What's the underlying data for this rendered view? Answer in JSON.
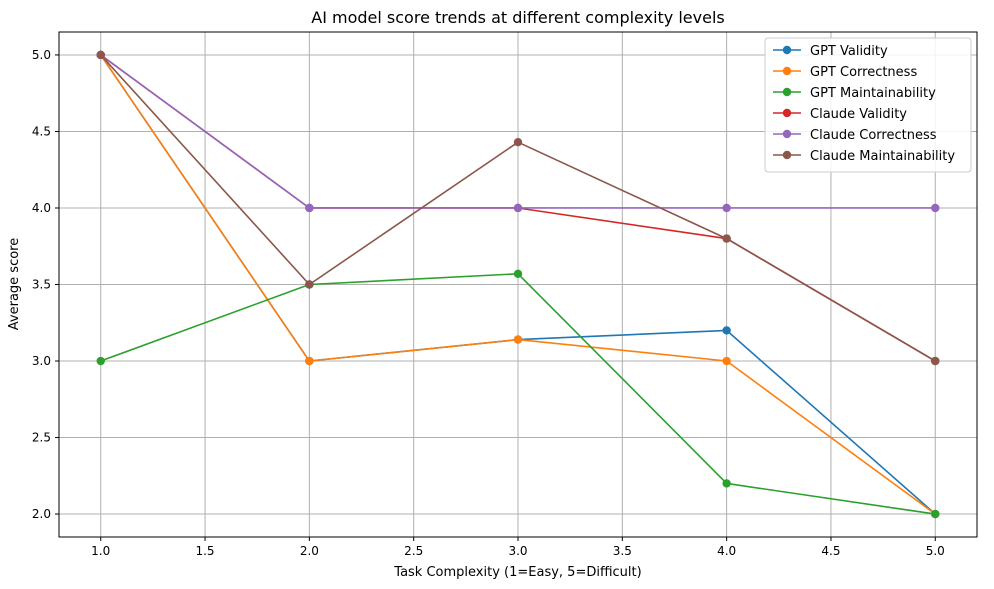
{
  "chart_data": {
    "type": "line",
    "title": "AI model score trends at different complexity levels",
    "xlabel": "Task Complexity (1=Easy, 5=Difficult)",
    "ylabel": "Average score",
    "xlim": [
      0.8,
      5.2
    ],
    "ylim": [
      1.85,
      5.15
    ],
    "xticks": [
      "1.0",
      "1.5",
      "2.0",
      "2.5",
      "3.0",
      "3.5",
      "4.0",
      "4.5",
      "5.0"
    ],
    "yticks": [
      "2.0",
      "2.5",
      "3.0",
      "3.5",
      "4.0",
      "4.5",
      "5.0"
    ],
    "grid": true,
    "legend_position": "top-right",
    "x": [
      1,
      2,
      3,
      4,
      5
    ],
    "series": [
      {
        "name": "GPT Validity",
        "color": "#1f77b4",
        "values": [
          5.0,
          3.0,
          3.14,
          3.2,
          2.0
        ]
      },
      {
        "name": "GPT Correctness",
        "color": "#ff7f0e",
        "values": [
          5.0,
          3.0,
          3.14,
          3.0,
          2.0
        ]
      },
      {
        "name": "GPT Maintainability",
        "color": "#2ca02c",
        "values": [
          3.0,
          3.5,
          3.57,
          2.2,
          2.0
        ]
      },
      {
        "name": "Claude Validity",
        "color": "#d62728",
        "values": [
          5.0,
          4.0,
          4.0,
          3.8,
          3.0
        ]
      },
      {
        "name": "Claude Correctness",
        "color": "#9467bd",
        "values": [
          5.0,
          4.0,
          4.0,
          4.0,
          4.0
        ]
      },
      {
        "name": "Claude Maintainability",
        "color": "#8c564b",
        "values": [
          5.0,
          3.5,
          4.43,
          3.8,
          3.0
        ]
      }
    ]
  }
}
